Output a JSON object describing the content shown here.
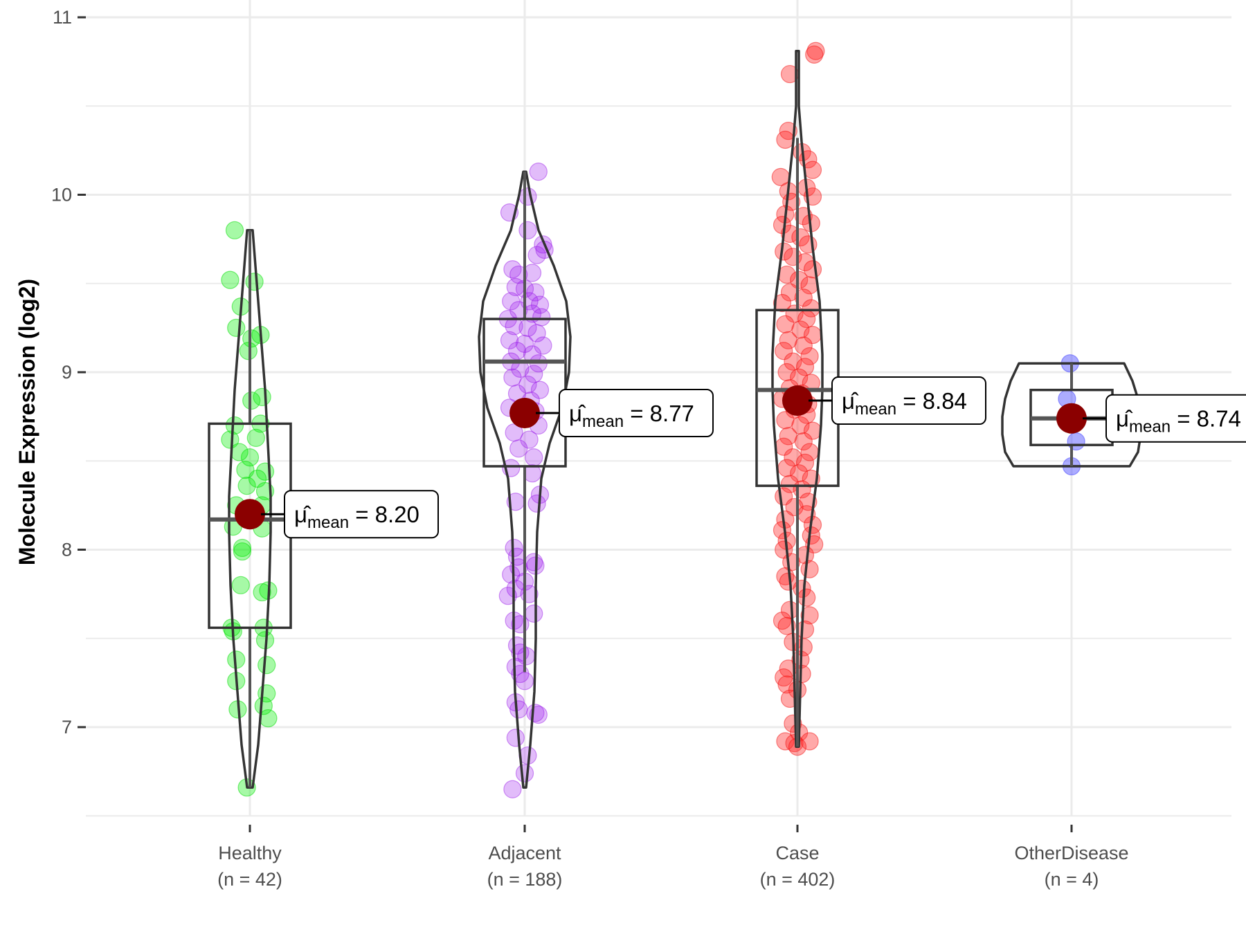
{
  "chart_data": {
    "type": "violin-box-jitter",
    "title": "",
    "xlabel": "",
    "ylabel": "Molecule Expression (log2)",
    "ylim": [
      6.5,
      11.0
    ],
    "yticks": [
      7,
      8,
      9,
      10,
      11
    ],
    "ytick_labels": [
      "7",
      "8",
      "9",
      "10",
      "11"
    ],
    "grid": true,
    "legend": "none",
    "mean_color": "#8b0000",
    "outline_color": "#333333",
    "mean_label_prefix": "μ̂",
    "mean_label_subscript": "mean",
    "groups": [
      {
        "name": "Healthy",
        "n_label": "(n = 42)",
        "n": 42,
        "color": "#00ee00",
        "point_fill": "rgba(0,238,0,0.35)",
        "point_stroke": "rgba(0,220,0,0.5)",
        "mean": 8.2,
        "mean_label": "8.20",
        "box": {
          "q1": 7.56,
          "median": 8.17,
          "q3": 8.71,
          "whisker_low": 6.66,
          "whisker_high": 9.8
        },
        "violin": {
          "min": 6.66,
          "max": 9.8,
          "profile": [
            [
              6.66,
              0.02
            ],
            [
              6.9,
              0.06
            ],
            [
              7.2,
              0.09
            ],
            [
              7.5,
              0.12
            ],
            [
              7.8,
              0.14
            ],
            [
              8.1,
              0.15
            ],
            [
              8.3,
              0.15
            ],
            [
              8.6,
              0.13
            ],
            [
              8.9,
              0.11
            ],
            [
              9.2,
              0.08
            ],
            [
              9.5,
              0.05
            ],
            [
              9.8,
              0.02
            ]
          ]
        },
        "points": [
          [
            -0.1,
            9.8
          ],
          [
            -0.13,
            9.52
          ],
          [
            0.03,
            9.51
          ],
          [
            -0.06,
            9.37
          ],
          [
            -0.09,
            9.25
          ],
          [
            0.07,
            9.21
          ],
          [
            0.01,
            9.19
          ],
          [
            -0.01,
            9.12
          ],
          [
            0.08,
            8.86
          ],
          [
            0.01,
            8.84
          ],
          [
            -0.1,
            8.7
          ],
          [
            0.07,
            8.71
          ],
          [
            -0.13,
            8.62
          ],
          [
            0.0,
            8.52
          ],
          [
            -0.03,
            8.45
          ],
          [
            0.1,
            8.44
          ],
          [
            -0.02,
            8.36
          ],
          [
            0.1,
            8.33
          ],
          [
            -0.09,
            8.25
          ],
          [
            0.08,
            8.25
          ],
          [
            -0.11,
            8.13
          ],
          [
            0.08,
            8.12
          ],
          [
            -0.05,
            8.01
          ],
          [
            -0.05,
            7.99
          ],
          [
            -0.06,
            7.8
          ],
          [
            0.08,
            7.76
          ],
          [
            0.12,
            7.77
          ],
          [
            -0.12,
            7.56
          ],
          [
            -0.11,
            7.54
          ],
          [
            0.09,
            7.56
          ],
          [
            0.1,
            7.49
          ],
          [
            -0.09,
            7.38
          ],
          [
            0.11,
            7.35
          ],
          [
            -0.09,
            7.26
          ],
          [
            0.11,
            7.19
          ],
          [
            -0.08,
            7.1
          ],
          [
            0.09,
            7.12
          ],
          [
            0.12,
            7.05
          ],
          [
            -0.02,
            6.66
          ],
          [
            0.05,
            8.4
          ],
          [
            -0.07,
            8.55
          ],
          [
            0.04,
            8.63
          ]
        ]
      },
      {
        "name": "Adjacent",
        "n_label": "(n = 188)",
        "n": 188,
        "color": "#a020f0",
        "point_fill": "rgba(160,32,240,0.30)",
        "point_stroke": "rgba(150,20,230,0.45)",
        "mean": 8.77,
        "mean_label": "8.77",
        "box": {
          "q1": 8.47,
          "median": 9.06,
          "q3": 9.3,
          "whisker_low": 7.31,
          "whisker_high": 10.13
        },
        "violin": {
          "min": 6.66,
          "max": 10.13,
          "profile": [
            [
              6.66,
              0.01
            ],
            [
              6.9,
              0.04
            ],
            [
              7.2,
              0.07
            ],
            [
              7.5,
              0.08
            ],
            [
              7.8,
              0.08
            ],
            [
              8.1,
              0.09
            ],
            [
              8.4,
              0.12
            ],
            [
              8.6,
              0.18
            ],
            [
              8.8,
              0.27
            ],
            [
              9.0,
              0.32
            ],
            [
              9.2,
              0.33
            ],
            [
              9.4,
              0.3
            ],
            [
              9.6,
              0.21
            ],
            [
              9.8,
              0.1
            ],
            [
              10.0,
              0.04
            ],
            [
              10.13,
              0.01
            ]
          ]
        },
        "points": [
          [
            0.09,
            10.13
          ],
          [
            0.02,
            9.99
          ],
          [
            -0.1,
            9.9
          ],
          [
            0.02,
            9.8
          ],
          [
            0.12,
            9.72
          ],
          [
            0.13,
            9.69
          ],
          [
            0.08,
            9.66
          ],
          [
            -0.08,
            9.58
          ],
          [
            -0.04,
            9.55
          ],
          [
            0.05,
            9.56
          ],
          [
            -0.06,
            9.48
          ],
          [
            0.0,
            9.47
          ],
          [
            0.07,
            9.45
          ],
          [
            -0.09,
            9.4
          ],
          [
            0.03,
            9.4
          ],
          [
            0.1,
            9.38
          ],
          [
            -0.04,
            9.35
          ],
          [
            0.05,
            9.33
          ],
          [
            -0.11,
            9.3
          ],
          [
            0.11,
            9.31
          ],
          [
            -0.07,
            9.26
          ],
          [
            0.02,
            9.25
          ],
          [
            0.08,
            9.22
          ],
          [
            -0.1,
            9.18
          ],
          [
            0.0,
            9.16
          ],
          [
            0.12,
            9.15
          ],
          [
            -0.05,
            9.12
          ],
          [
            0.05,
            9.1
          ],
          [
            -0.09,
            9.06
          ],
          [
            0.09,
            9.05
          ],
          [
            -0.03,
            9.02
          ],
          [
            0.06,
            8.99
          ],
          [
            -0.08,
            8.97
          ],
          [
            0.02,
            8.93
          ],
          [
            0.1,
            8.9
          ],
          [
            -0.05,
            8.88
          ],
          [
            0.04,
            8.84
          ],
          [
            -0.1,
            8.8
          ],
          [
            0.07,
            8.78
          ],
          [
            -0.02,
            8.74
          ],
          [
            0.09,
            8.7
          ],
          [
            -0.07,
            8.66
          ],
          [
            0.03,
            8.62
          ],
          [
            -0.04,
            8.57
          ],
          [
            0.06,
            8.52
          ],
          [
            -0.09,
            8.46
          ],
          [
            0.05,
            8.43
          ],
          [
            0.1,
            8.31
          ],
          [
            0.08,
            8.26
          ],
          [
            -0.06,
            8.27
          ],
          [
            -0.07,
            8.01
          ],
          [
            -0.05,
            7.96
          ],
          [
            0.06,
            7.93
          ],
          [
            0.07,
            7.91
          ],
          [
            -0.04,
            7.9
          ],
          [
            -0.09,
            7.86
          ],
          [
            0.0,
            7.82
          ],
          [
            -0.06,
            7.78
          ],
          [
            -0.11,
            7.74
          ],
          [
            0.03,
            7.75
          ],
          [
            0.06,
            7.64
          ],
          [
            -0.07,
            7.6
          ],
          [
            -0.03,
            7.58
          ],
          [
            -0.05,
            7.46
          ],
          [
            -0.03,
            7.42
          ],
          [
            0.01,
            7.4
          ],
          [
            -0.06,
            7.34
          ],
          [
            -0.03,
            7.3
          ],
          [
            0.0,
            7.26
          ],
          [
            -0.06,
            7.14
          ],
          [
            -0.04,
            7.1
          ],
          [
            0.07,
            7.08
          ],
          [
            0.09,
            7.07
          ],
          [
            -0.06,
            6.94
          ],
          [
            0.02,
            6.84
          ],
          [
            0.0,
            6.74
          ],
          [
            -0.08,
            6.65
          ]
        ]
      },
      {
        "name": "Case",
        "n_label": "(n = 402)",
        "n": 402,
        "color": "#ff0000",
        "point_fill": "rgba(255,40,40,0.40)",
        "point_stroke": "rgba(240,0,0,0.45)",
        "mean": 8.84,
        "mean_label": "8.84",
        "box": {
          "q1": 8.36,
          "median": 8.9,
          "q3": 9.35,
          "whisker_low": 6.89,
          "whisker_high": 10.32
        },
        "violin": {
          "min": 6.89,
          "max": 10.81,
          "profile": [
            [
              6.89,
              0.01
            ],
            [
              7.2,
              0.02
            ],
            [
              7.5,
              0.03
            ],
            [
              7.8,
              0.05
            ],
            [
              8.1,
              0.09
            ],
            [
              8.4,
              0.14
            ],
            [
              8.7,
              0.17
            ],
            [
              8.9,
              0.18
            ],
            [
              9.1,
              0.18
            ],
            [
              9.4,
              0.16
            ],
            [
              9.7,
              0.11
            ],
            [
              10.0,
              0.07
            ],
            [
              10.3,
              0.03
            ],
            [
              10.5,
              0.01
            ],
            [
              10.81,
              0.01
            ]
          ]
        },
        "points": [
          [
            0.12,
            10.81
          ],
          [
            0.11,
            10.79
          ],
          [
            -0.05,
            10.68
          ],
          [
            -0.06,
            10.36
          ],
          [
            -0.08,
            10.31
          ],
          [
            0.03,
            10.24
          ],
          [
            0.07,
            10.2
          ],
          [
            0.1,
            10.14
          ],
          [
            -0.11,
            10.1
          ],
          [
            -0.06,
            10.02
          ],
          [
            0.06,
            10.04
          ],
          [
            0.1,
            9.99
          ],
          [
            -0.04,
            9.96
          ],
          [
            -0.08,
            9.89
          ],
          [
            0.04,
            9.88
          ],
          [
            0.09,
            9.84
          ],
          [
            -0.1,
            9.83
          ],
          [
            -0.05,
            9.78
          ],
          [
            0.02,
            9.76
          ],
          [
            0.07,
            9.72
          ],
          [
            -0.09,
            9.68
          ],
          [
            -0.03,
            9.65
          ],
          [
            0.05,
            9.62
          ],
          [
            0.1,
            9.58
          ],
          [
            -0.07,
            9.55
          ],
          [
            0.01,
            9.52
          ],
          [
            0.08,
            9.49
          ],
          [
            -0.05,
            9.45
          ],
          [
            0.04,
            9.42
          ],
          [
            -0.1,
            9.39
          ],
          [
            0.09,
            9.36
          ],
          [
            -0.02,
            9.33
          ],
          [
            0.06,
            9.3
          ],
          [
            -0.08,
            9.27
          ],
          [
            0.02,
            9.24
          ],
          [
            0.1,
            9.21
          ],
          [
            -0.06,
            9.18
          ],
          [
            0.04,
            9.15
          ],
          [
            -0.09,
            9.12
          ],
          [
            0.08,
            9.09
          ],
          [
            -0.03,
            9.06
          ],
          [
            0.05,
            9.03
          ],
          [
            -0.07,
            9.0
          ],
          [
            0.01,
            8.97
          ],
          [
            0.09,
            8.94
          ],
          [
            -0.05,
            8.91
          ],
          [
            0.03,
            8.88
          ],
          [
            -0.1,
            8.85
          ],
          [
            0.07,
            8.82
          ],
          [
            -0.02,
            8.79
          ],
          [
            0.06,
            8.76
          ],
          [
            -0.08,
            8.73
          ],
          [
            0.02,
            8.7
          ],
          [
            0.1,
            8.67
          ],
          [
            -0.06,
            8.64
          ],
          [
            0.04,
            8.61
          ],
          [
            -0.09,
            8.58
          ],
          [
            0.08,
            8.55
          ],
          [
            -0.03,
            8.52
          ],
          [
            0.05,
            8.49
          ],
          [
            -0.07,
            8.46
          ],
          [
            0.01,
            8.43
          ],
          [
            0.09,
            8.4
          ],
          [
            -0.05,
            8.37
          ],
          [
            0.03,
            8.34
          ],
          [
            -0.09,
            8.3
          ],
          [
            0.07,
            8.27
          ],
          [
            -0.02,
            8.24
          ],
          [
            0.06,
            8.2
          ],
          [
            -0.08,
            8.17
          ],
          [
            0.1,
            8.14
          ],
          [
            -0.1,
            8.11
          ],
          [
            0.09,
            8.08
          ],
          [
            -0.07,
            8.05
          ],
          [
            0.11,
            8.03
          ],
          [
            -0.09,
            8.0
          ],
          [
            0.05,
            7.97
          ],
          [
            -0.04,
            7.93
          ],
          [
            0.08,
            7.89
          ],
          [
            -0.08,
            7.85
          ],
          [
            -0.06,
            7.82
          ],
          [
            0.03,
            7.78
          ],
          [
            0.06,
            7.73
          ],
          [
            -0.05,
            7.66
          ],
          [
            0.08,
            7.63
          ],
          [
            -0.1,
            7.6
          ],
          [
            -0.07,
            7.57
          ],
          [
            0.05,
            7.55
          ],
          [
            -0.03,
            7.48
          ],
          [
            0.04,
            7.45
          ],
          [
            0.02,
            7.38
          ],
          [
            -0.06,
            7.33
          ],
          [
            0.03,
            7.3
          ],
          [
            -0.09,
            7.28
          ],
          [
            -0.07,
            7.24
          ],
          [
            0.0,
            7.21
          ],
          [
            -0.05,
            7.16
          ],
          [
            -0.03,
            7.02
          ],
          [
            0.01,
            6.97
          ],
          [
            -0.08,
            6.92
          ],
          [
            -0.02,
            6.91
          ],
          [
            0.08,
            6.92
          ],
          [
            0.0,
            6.89
          ]
        ]
      },
      {
        "name": "OtherDisease",
        "n_label": "(n = 4)",
        "n": 4,
        "color": "#4040ff",
        "point_fill": "rgba(70,70,255,0.45)",
        "point_stroke": "rgba(60,60,255,0.5)",
        "mean": 8.74,
        "mean_label": "8.74",
        "box": {
          "q1": 8.59,
          "median": 8.74,
          "q3": 8.9,
          "whisker_low": 8.47,
          "whisker_high": 9.05
        },
        "violin": {
          "min": 8.47,
          "max": 9.05,
          "profile": [
            [
              8.47,
              0.42
            ],
            [
              8.55,
              0.48
            ],
            [
              8.65,
              0.5
            ],
            [
              8.75,
              0.5
            ],
            [
              8.85,
              0.48
            ],
            [
              8.95,
              0.44
            ],
            [
              9.05,
              0.38
            ]
          ]
        },
        "points": [
          [
            -0.01,
            9.05
          ],
          [
            -0.03,
            8.85
          ],
          [
            0.03,
            8.61
          ],
          [
            0.0,
            8.47
          ]
        ]
      }
    ]
  }
}
